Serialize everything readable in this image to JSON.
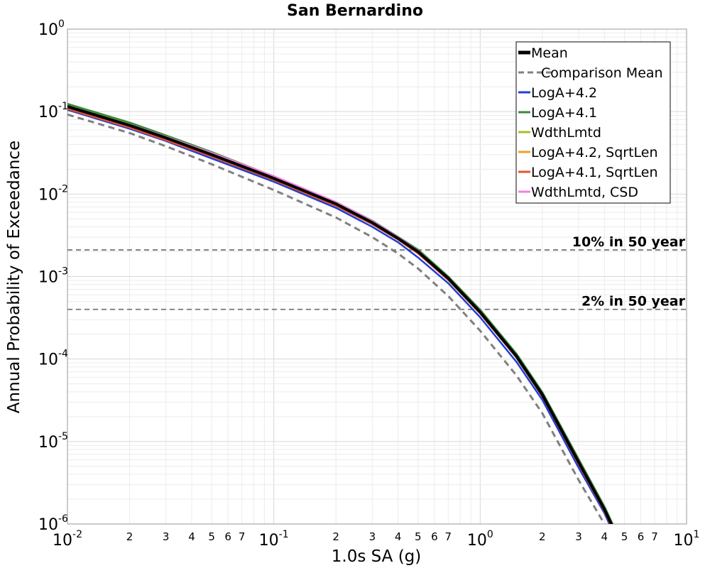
{
  "chart_data": {
    "type": "line",
    "title": "San Bernardino",
    "xlabel": "1.0s SA (g)",
    "ylabel": "Annual Probability of Exceedance",
    "xscale": "log",
    "yscale": "log",
    "xlim": [
      0.01,
      10
    ],
    "ylim": [
      1e-06,
      1
    ],
    "grid": true,
    "legend_position": "top-right",
    "x_major_ticks": [
      {
        "base": "10",
        "exp": "-2"
      },
      {
        "base": "10",
        "exp": "-1"
      },
      {
        "base": "10",
        "exp": "0"
      },
      {
        "base": "10",
        "exp": "1"
      }
    ],
    "x_minor_labels": [
      "2",
      "3",
      "4",
      "5",
      "6",
      "7"
    ],
    "y_major_ticks": [
      {
        "base": "10",
        "exp": "0"
      },
      {
        "base": "10",
        "exp": "-1"
      },
      {
        "base": "10",
        "exp": "-2"
      },
      {
        "base": "10",
        "exp": "-3"
      },
      {
        "base": "10",
        "exp": "-4"
      },
      {
        "base": "10",
        "exp": "-5"
      },
      {
        "base": "10",
        "exp": "-6"
      }
    ],
    "reference_lines": [
      {
        "label": "10% in 50 year",
        "y": 0.0021
      },
      {
        "label": "2% in 50 year",
        "y": 0.0004
      }
    ],
    "series": [
      {
        "name": "Mean",
        "color": "#000000",
        "dash": "solid",
        "x": [
          0.01,
          0.02,
          0.03,
          0.05,
          0.1,
          0.2,
          0.3,
          0.4,
          0.5,
          0.7,
          1.0,
          1.5,
          2.0,
          3.0,
          4.0,
          4.5
        ],
        "y": [
          0.115,
          0.068,
          0.048,
          0.03,
          0.0155,
          0.0076,
          0.0045,
          0.0029,
          0.002,
          0.00095,
          0.00037,
          0.000108,
          3.7e-05,
          5.6e-06,
          1.5e-06,
          8e-07
        ]
      },
      {
        "name": "Comparison Mean",
        "color": "#808080",
        "dash": "dashed",
        "x": [
          0.01,
          0.02,
          0.03,
          0.05,
          0.1,
          0.2,
          0.3,
          0.4,
          0.5,
          0.7,
          1.0,
          1.5,
          2.0,
          3.0,
          4.0,
          4.5
        ],
        "y": [
          0.092,
          0.055,
          0.038,
          0.023,
          0.0112,
          0.0052,
          0.003,
          0.0019,
          0.00125,
          0.00058,
          0.00022,
          6.3e-05,
          2.2e-05,
          3.4e-06,
          1e-06,
          6e-07
        ]
      },
      {
        "name": "LogA+4.2",
        "color": "#1f3fd6",
        "dash": "solid",
        "x": [
          0.01,
          0.02,
          0.03,
          0.05,
          0.1,
          0.2,
          0.3,
          0.4,
          0.5,
          0.7,
          1.0,
          1.5,
          2.0,
          3.0,
          4.0,
          4.5
        ],
        "y": [
          0.105,
          0.062,
          0.044,
          0.027,
          0.0141,
          0.0068,
          0.004,
          0.0026,
          0.0017,
          0.00083,
          0.00032,
          9.2e-05,
          3.2e-05,
          4.8e-06,
          1.35e-06,
          7e-07
        ]
      },
      {
        "name": "LogA+4.1",
        "color": "#3a8a3a",
        "dash": "solid",
        "x": [
          0.01,
          0.02,
          0.03,
          0.05,
          0.1,
          0.2,
          0.3,
          0.4,
          0.5,
          0.7,
          1.0,
          1.5,
          2.0,
          3.0,
          4.0,
          4.5
        ],
        "y": [
          0.123,
          0.073,
          0.051,
          0.032,
          0.0162,
          0.0079,
          0.0047,
          0.003,
          0.0021,
          0.00099,
          0.00039,
          0.000114,
          3.9e-05,
          6e-06,
          1.6e-06,
          8.5e-07
        ]
      },
      {
        "name": "WdthLmtd",
        "color": "#a8c020",
        "dash": "solid",
        "x": [
          0.01,
          0.02,
          0.03,
          0.05,
          0.1,
          0.2,
          0.3,
          0.4,
          0.5,
          0.7,
          1.0,
          1.5,
          2.0,
          3.0,
          4.0,
          4.5
        ],
        "y": [
          0.114,
          0.0675,
          0.0475,
          0.0298,
          0.0154,
          0.0075,
          0.00445,
          0.00288,
          0.00198,
          0.00094,
          0.000365,
          0.000106,
          3.65e-05,
          5.5e-06,
          1.5e-06,
          8e-07
        ]
      },
      {
        "name": "LogA+4.2, SqrtLen",
        "color": "#f0a020",
        "dash": "solid",
        "x": [
          0.01,
          0.02,
          0.03,
          0.05,
          0.1,
          0.2,
          0.3,
          0.4,
          0.5,
          0.7,
          1.0,
          1.5,
          2.0,
          3.0,
          4.0,
          4.5
        ],
        "y": [
          0.112,
          0.0665,
          0.047,
          0.0295,
          0.0152,
          0.0074,
          0.0044,
          0.00285,
          0.00195,
          0.00093,
          0.00036,
          0.000105,
          3.6e-05,
          5.4e-06,
          1.45e-06,
          7.8e-07
        ]
      },
      {
        "name": "LogA+4.1, SqrtLen",
        "color": "#e8502a",
        "dash": "solid",
        "x": [
          0.01,
          0.02,
          0.03,
          0.05,
          0.1,
          0.2,
          0.3,
          0.4,
          0.5,
          0.7,
          1.0,
          1.5,
          2.0,
          3.0,
          4.0,
          4.5
        ],
        "y": [
          0.108,
          0.064,
          0.045,
          0.0285,
          0.0148,
          0.0072,
          0.0043,
          0.0028,
          0.0019,
          0.00091,
          0.000355,
          0.000104,
          3.55e-05,
          5.3e-06,
          1.42e-06,
          7.6e-07
        ]
      },
      {
        "name": "WdthLmtd, CSD",
        "color": "#f080e0",
        "dash": "solid",
        "x": [
          0.01,
          0.02,
          0.03,
          0.05,
          0.1,
          0.2,
          0.3,
          0.4,
          0.5,
          0.7,
          1.0,
          1.5,
          2.0,
          3.0,
          4.0,
          4.5
        ],
        "y": [
          0.116,
          0.0695,
          0.0495,
          0.0315,
          0.0165,
          0.008,
          0.0047,
          0.003,
          0.00205,
          0.00096,
          0.000372,
          0.000108,
          3.7e-05,
          5.6e-06,
          1.5e-06,
          8e-07
        ]
      }
    ]
  }
}
